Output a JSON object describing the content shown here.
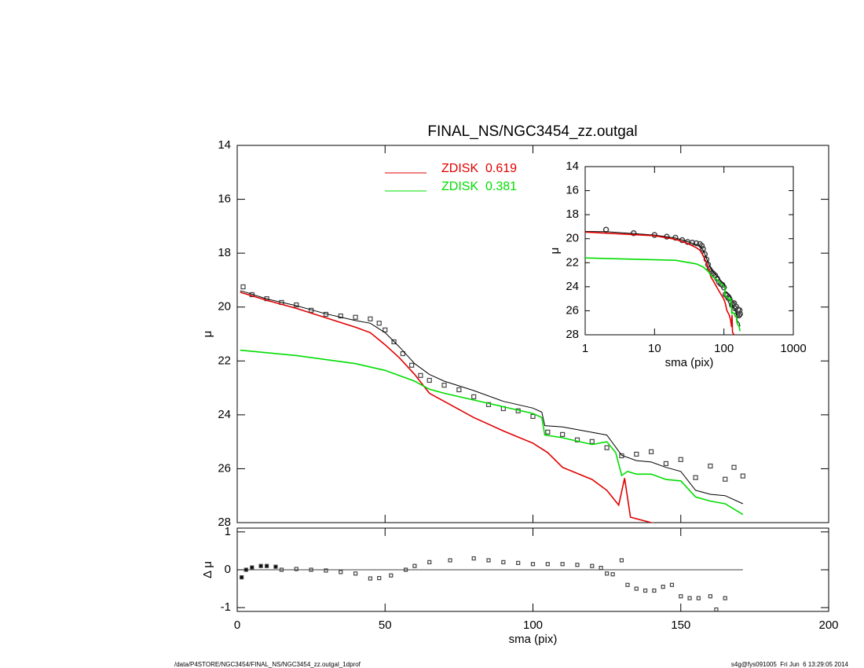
{
  "chart_data": [
    {
      "type": "line",
      "title": "FINAL_NS/NGC3454_zz.outgal",
      "ylabel": "μ",
      "xlim": [
        0,
        200
      ],
      "ylim": [
        28,
        14
      ],
      "yticks": [
        14,
        16,
        18,
        20,
        22,
        24,
        26,
        28
      ],
      "series": [
        {
          "style": "points",
          "color": "#444444",
          "x": [
            2,
            5,
            10,
            15,
            20,
            25,
            30,
            35,
            40,
            45,
            48,
            50,
            53,
            56,
            59,
            62,
            65,
            70,
            75,
            80,
            85,
            90,
            95,
            100,
            105,
            110,
            115,
            120,
            125,
            130,
            135,
            140,
            145,
            150,
            155,
            160,
            165,
            168,
            171
          ],
          "values": [
            19.25,
            19.54,
            19.69,
            19.83,
            19.92,
            20.12,
            20.27,
            20.33,
            20.38,
            20.44,
            20.6,
            20.85,
            21.29,
            21.73,
            22.16,
            22.54,
            22.72,
            22.9,
            23.07,
            23.33,
            23.62,
            23.77,
            23.85,
            24.06,
            24.64,
            24.73,
            24.93,
            24.99,
            25.22,
            25.52,
            25.46,
            25.37,
            25.81,
            25.66,
            26.33,
            25.9,
            26.39,
            25.95,
            26.27
          ]
        },
        {
          "style": "line",
          "color": "#000000",
          "x": [
            1,
            2,
            10,
            20,
            30,
            40,
            45,
            50,
            55,
            60,
            65,
            70,
            80,
            90,
            100,
            103,
            104,
            110,
            120,
            125,
            130,
            135,
            140,
            145,
            150,
            155,
            160,
            165,
            171
          ],
          "values": [
            19.4,
            19.42,
            19.7,
            19.95,
            20.25,
            20.5,
            20.6,
            20.95,
            21.5,
            22.1,
            22.5,
            22.75,
            23.1,
            23.5,
            23.75,
            23.9,
            24.4,
            24.45,
            24.65,
            24.75,
            25.5,
            25.7,
            25.75,
            25.95,
            26.1,
            26.8,
            26.95,
            27.0,
            27.3
          ]
        },
        {
          "style": "line",
          "name": "ZDISK  0.619",
          "color": "#e00000",
          "x": [
            1,
            10,
            20,
            30,
            40,
            45,
            50,
            55,
            60,
            65,
            70,
            80,
            90,
            100,
            105,
            110,
            120,
            125,
            129,
            131,
            133,
            140,
            145
          ],
          "values": [
            19.45,
            19.75,
            20.05,
            20.4,
            20.75,
            20.95,
            21.4,
            21.9,
            22.5,
            23.2,
            23.5,
            24.1,
            24.6,
            25.05,
            25.4,
            25.95,
            26.4,
            26.8,
            27.35,
            26.35,
            27.8,
            28.0,
            28.1
          ]
        },
        {
          "style": "line",
          "name": "ZDISK  0.381",
          "color": "#00dd00",
          "x": [
            1,
            20,
            40,
            50,
            60,
            65,
            70,
            80,
            90,
            100,
            103,
            104,
            110,
            120,
            125,
            128,
            130,
            132,
            135,
            140,
            145,
            150,
            155,
            160,
            165,
            171
          ],
          "values": [
            21.6,
            21.8,
            22.1,
            22.35,
            22.75,
            23.05,
            23.2,
            23.45,
            23.7,
            23.95,
            24.1,
            24.75,
            24.85,
            25.1,
            25.0,
            25.4,
            26.25,
            26.1,
            26.2,
            26.2,
            26.4,
            26.45,
            27.05,
            27.2,
            27.3,
            27.7
          ]
        }
      ]
    },
    {
      "type": "scatter",
      "xlabel": "sma (pix)",
      "ylabel": "Δ μ",
      "xlim": [
        0,
        200
      ],
      "xticks": [
        0,
        50,
        100,
        150,
        200
      ],
      "ylim": [
        -1.1,
        1.1
      ],
      "yticks": [
        -1,
        0,
        1
      ],
      "color": "#444444",
      "x": [
        1.5,
        3,
        5,
        8,
        10,
        13,
        15,
        20,
        25,
        30,
        35,
        40,
        45,
        48,
        52,
        57,
        60,
        65,
        72,
        80,
        85,
        90,
        95,
        100,
        105,
        110,
        115,
        120,
        123,
        125,
        127,
        130,
        132,
        135,
        138,
        141,
        144,
        147,
        150,
        153,
        156,
        160,
        162,
        165
      ],
      "values": [
        -0.2,
        0.0,
        0.06,
        0.1,
        0.1,
        0.08,
        0.0,
        0.02,
        0.0,
        -0.02,
        -0.06,
        -0.1,
        -0.23,
        -0.22,
        -0.15,
        0.0,
        0.1,
        0.2,
        0.25,
        0.3,
        0.25,
        0.2,
        0.18,
        0.15,
        0.15,
        0.15,
        0.13,
        0.1,
        0.05,
        -0.1,
        -0.12,
        0.25,
        -0.4,
        -0.5,
        -0.55,
        -0.55,
        -0.45,
        -0.4,
        -0.7,
        -0.75,
        -0.75,
        -0.7,
        -1.05,
        -0.75
      ]
    },
    {
      "type": "line",
      "xscale": "log",
      "xlabel": "sma (pix)",
      "ylabel": "μ",
      "xlim": [
        1,
        1000
      ],
      "xticks": [
        1,
        10,
        100,
        1000
      ],
      "ylim": [
        28,
        14
      ],
      "yticks": [
        14,
        16,
        18,
        20,
        22,
        24,
        26,
        28
      ]
    }
  ],
  "footer": {
    "left": "/data/P4STORE/NGC3454/FINAL_NS/NGC3454_zz.outgal_1dprof",
    "right": "s4g@fys091005  Fri Jun  6 13:29:05 2014"
  }
}
